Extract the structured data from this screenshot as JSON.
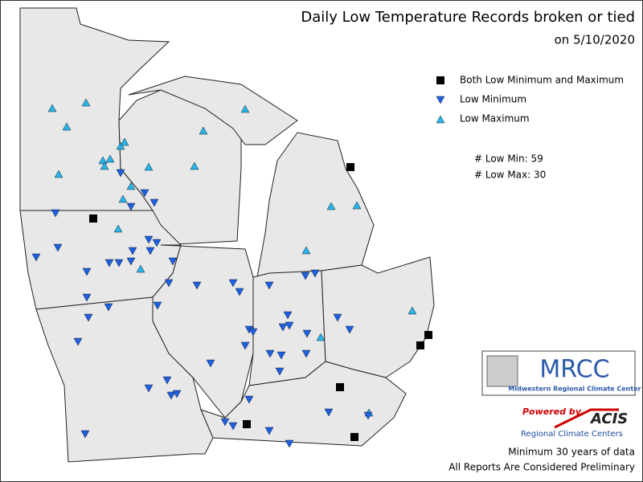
{
  "title": "Daily Low Temperature Records broken or tied",
  "subtitle": "on 5/10/2020",
  "legend": [
    {
      "label": "Both Low Minimum and Maximum"
    },
    {
      "label": "Low Minimum"
    },
    {
      "label": "Low Maximum"
    }
  ],
  "counts": [
    "# Low Min: 59",
    "# Low Max: 30"
  ],
  "logos": {
    "mrcc": "MRCC",
    "mrcc_name": "Midwestern Regional Climate Center",
    "powered_by": "Powered by",
    "acis": "ACIS",
    "acis_name": "Regional Climate Centers"
  },
  "notes": [
    "Minimum 30 years of data",
    "All Reports Are Considered Preliminary"
  ]
}
